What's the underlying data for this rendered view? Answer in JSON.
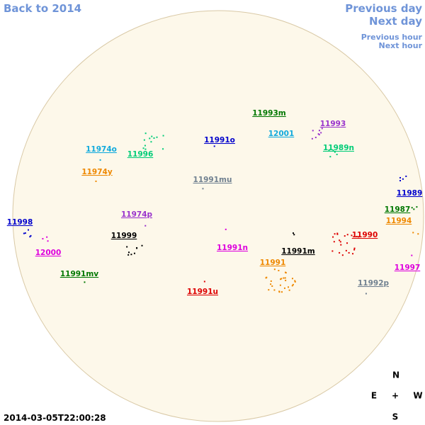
{
  "navigation": {
    "back_year": "Back to 2014",
    "previous_day": "Previous day",
    "next_day": "Next day",
    "previous_hour": "Previous hour",
    "next_hour": "Next hour"
  },
  "regions": [
    {
      "label": "11993m",
      "color": "#007700"
    },
    {
      "label": "11993",
      "color": "#9933cc"
    },
    {
      "label": "12001",
      "color": "#11aadd"
    },
    {
      "label": "11991o",
      "color": "#0000cc"
    },
    {
      "label": "11974o",
      "color": "#11aadd"
    },
    {
      "label": "11996",
      "color": "#00cc77"
    },
    {
      "label": "11989n",
      "color": "#00cc77"
    },
    {
      "label": "11974y",
      "color": "#ee8800"
    },
    {
      "label": "11991mu",
      "color": "#708090"
    },
    {
      "label": "11989",
      "color": "#0000cc"
    },
    {
      "label": "11987",
      "color": "#007700"
    },
    {
      "label": "11994",
      "color": "#ee8800"
    },
    {
      "label": "11974p",
      "color": "#9933cc"
    },
    {
      "label": "11998",
      "color": "#0000cc"
    },
    {
      "label": "11999",
      "color": "#000000"
    },
    {
      "label": "11990",
      "color": "#dd0000"
    },
    {
      "label": "11991n",
      "color": "#dd00dd"
    },
    {
      "label": "11991m",
      "color": "#000000"
    },
    {
      "label": "12000",
      "color": "#dd00dd"
    },
    {
      "label": "11991",
      "color": "#ee8800"
    },
    {
      "label": "11997",
      "color": "#dd00dd"
    },
    {
      "label": "11991mv",
      "color": "#007700"
    },
    {
      "label": "11992p",
      "color": "#708090"
    },
    {
      "label": "11991u",
      "color": "#dd0000"
    }
  ],
  "compass": {
    "north": "N",
    "east": "E",
    "center": "+",
    "west": "W",
    "south": "S"
  },
  "timestamp": "2014-03-05T22:00:28"
}
